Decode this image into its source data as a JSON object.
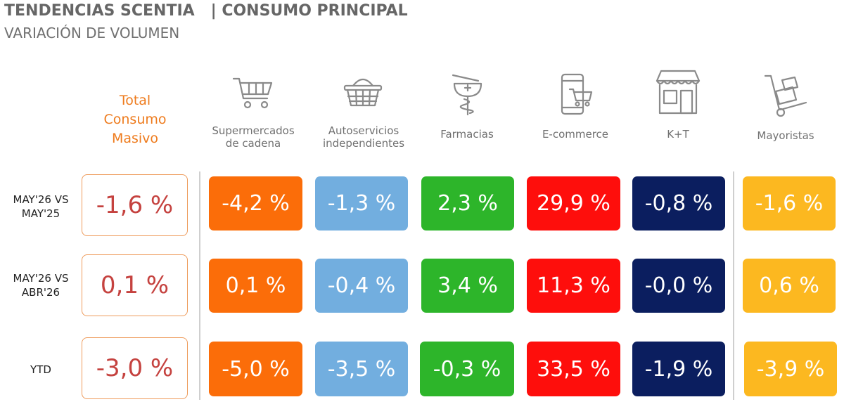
{
  "header": {
    "title": "TENDENCIAS SCENTIA   | CONSUMO PRINCIPAL",
    "subtitle": "VARIACIÓN DE VOLUMEN"
  },
  "chart_data": {
    "type": "table",
    "title": "TENDENCIAS SCENTIA   | CONSUMO PRINCIPAL",
    "subtitle": "VARIACIÓN DE VOLUMEN",
    "total_label": "Total Consumo Masivo",
    "total_label_lines": [
      "Total",
      "Consumo",
      "Masivo"
    ],
    "rows": [
      {
        "label_lines": [
          "MAY'26 VS",
          "MAY'25"
        ],
        "total": "-1,6 %",
        "values": [
          "-4,2 %",
          "-1,3 %",
          "2,3 %",
          "29,9 %",
          "-0,8 %",
          "-1,6 %"
        ]
      },
      {
        "label_lines": [
          "MAY'26 VS",
          "ABR'26"
        ],
        "total": "0,1 %",
        "values": [
          "0,1 %",
          "-0,4 %",
          "3,4 %",
          "11,3 %",
          "-0,0 %",
          "0,6 %"
        ]
      },
      {
        "label_lines": [
          "YTD"
        ],
        "total": "-3,0 %",
        "values": [
          "-5,0 %",
          "-3,5 %",
          "-0,3 %",
          "33,5 %",
          "-1,9 %",
          "-3,9 %"
        ]
      }
    ],
    "row_values_numeric": [
      [
        -1.6,
        -4.2,
        -1.3,
        2.3,
        29.9,
        -0.8,
        -1.6
      ],
      [
        0.1,
        0.1,
        -0.4,
        3.4,
        11.3,
        -0.0,
        0.6
      ],
      [
        -3.0,
        -5.0,
        -3.5,
        -0.3,
        33.5,
        -1.9,
        -3.9
      ]
    ],
    "channels": [
      {
        "name": "Supermercados de cadena",
        "label_lines": [
          "Supermercados",
          "de cadena"
        ],
        "icon": "shopping-cart-icon",
        "color": "#fb6d09"
      },
      {
        "name": "Autoservicios independientes",
        "label_lines": [
          "Autoservicios",
          "independientes"
        ],
        "icon": "shopping-basket-icon",
        "color": "#72aedf"
      },
      {
        "name": "Farmacias",
        "label_lines": [
          "Farmacias"
        ],
        "icon": "pharmacy-icon",
        "color": "#2db52a"
      },
      {
        "name": "E-commerce",
        "label_lines": [
          "E-commerce"
        ],
        "icon": "mobile-cart-icon",
        "color": "#fe0e0c"
      },
      {
        "name": "K+T",
        "label_lines": [
          "K+T"
        ],
        "icon": "storefront-icon",
        "color": "#0b1e5f"
      },
      {
        "name": "Mayoristas",
        "label_lines": [
          "Mayoristas"
        ],
        "icon": "hand-truck-icon",
        "color": "#fcb820"
      }
    ],
    "colors": {
      "total_text": "#c5423f",
      "total_border": "#ee9b5b",
      "total_label": "#ee7b1d",
      "cell_text": "#ffffff"
    }
  }
}
